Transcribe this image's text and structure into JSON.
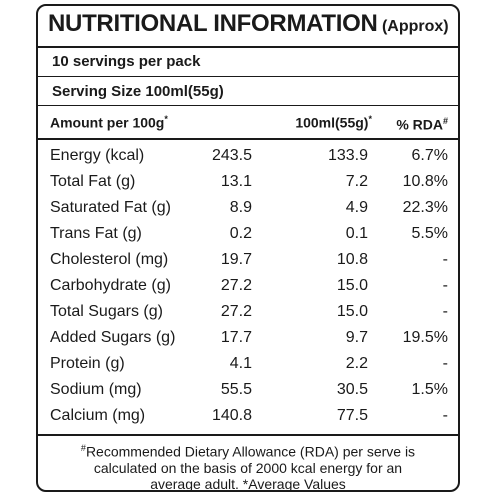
{
  "header": {
    "title": "NUTRITIONAL INFORMATION",
    "title_suffix": "(Approx)",
    "servings": "10 servings per pack",
    "serving_size": "Serving Size 100ml(55g)"
  },
  "columns": {
    "amount_label": "Amount per 100g",
    "amount_mark": "*",
    "serve_label": "100ml(55g)",
    "serve_mark": "*",
    "rda_label": "% RDA",
    "rda_mark": "#"
  },
  "rows": [
    {
      "name": "Energy (kcal)",
      "per100g": "243.5",
      "per_serve": "133.9",
      "rda": "6.7%"
    },
    {
      "name": "Total Fat (g)",
      "per100g": "13.1",
      "per_serve": "7.2",
      "rda": "10.8%"
    },
    {
      "name": "Saturated Fat (g)",
      "per100g": "8.9",
      "per_serve": "4.9",
      "rda": "22.3%"
    },
    {
      "name": "Trans Fat (g)",
      "per100g": "0.2",
      "per_serve": "0.1",
      "rda": "5.5%"
    },
    {
      "name": "Cholesterol (mg)",
      "per100g": "19.7",
      "per_serve": "10.8",
      "rda": "-"
    },
    {
      "name": "Carbohydrate (g)",
      "per100g": "27.2",
      "per_serve": "15.0",
      "rda": "-"
    },
    {
      "name": "Total Sugars (g)",
      "per100g": "27.2",
      "per_serve": "15.0",
      "rda": "-"
    },
    {
      "name": "Added Sugars (g)",
      "per100g": "17.7",
      "per_serve": "9.7",
      "rda": "19.5%"
    },
    {
      "name": "Protein (g)",
      "per100g": "4.1",
      "per_serve": "2.2",
      "rda": "-"
    },
    {
      "name": "Sodium (mg)",
      "per100g": "55.5",
      "per_serve": "30.5",
      "rda": "1.5%"
    },
    {
      "name": "Calcium (mg)",
      "per100g": "140.8",
      "per_serve": "77.5",
      "rda": "-"
    }
  ],
  "footnote": {
    "mark": "#",
    "line1": "Recommended Dietary Allowance (RDA) per serve is",
    "line2": "calculated on the basis of 2000 kcal energy for an",
    "line3": "average adult. *Average Values"
  }
}
